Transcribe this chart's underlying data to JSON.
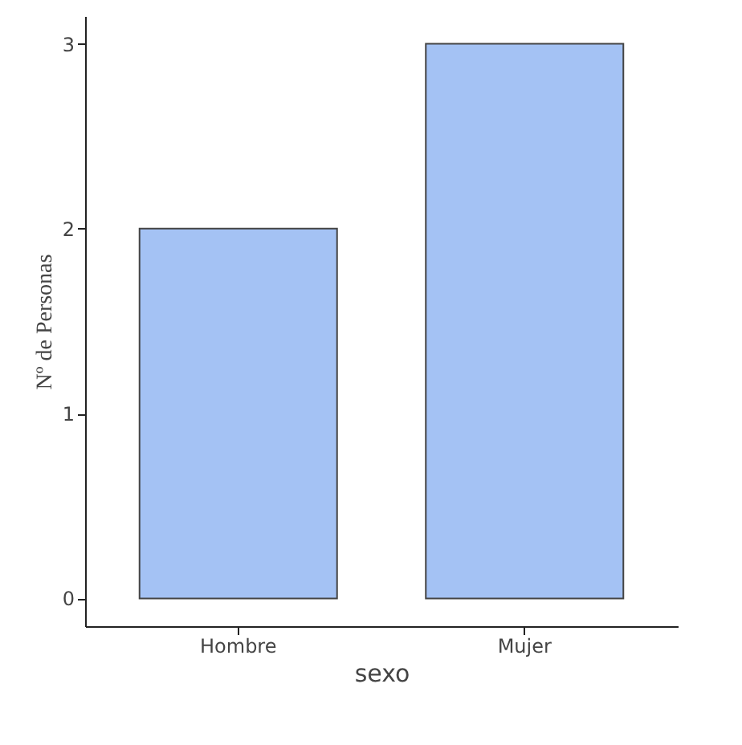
{
  "chart_data": {
    "type": "bar",
    "xlabel": "sexo",
    "ylabel": "Nº de Personas",
    "categories": [
      "Hombre",
      "Mujer"
    ],
    "series": [
      {
        "color": "#a4c2f4",
        "values": [
          2,
          3
        ]
      }
    ],
    "ylim": [
      -0.15,
      3.15
    ],
    "yticks": [
      0,
      1,
      2,
      3
    ]
  }
}
